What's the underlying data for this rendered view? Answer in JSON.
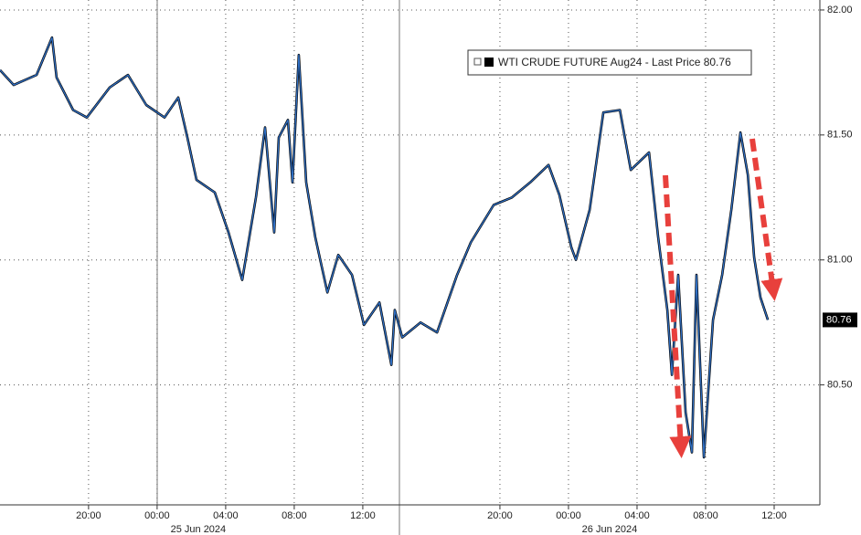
{
  "chart_data": {
    "type": "line",
    "x": [
      "2024-06-24 14:50",
      "2024-06-24 15:38",
      "2024-06-24 16:58",
      "2024-06-24 17:52",
      "2024-06-24 18:08",
      "2024-06-24 19:06",
      "2024-06-24 19:54",
      "2024-06-24 21:14",
      "2024-06-24 22:18",
      "2024-06-24 23:22",
      "2024-06-25 00:26",
      "2024-06-25 01:14",
      "2024-06-25 01:46",
      "2024-06-25 02:18",
      "2024-06-25 03:22",
      "2024-06-25 04:10",
      "2024-06-25 04:58",
      "2024-06-25 05:46",
      "2024-06-25 06:18",
      "2024-06-25 06:50",
      "2024-06-25 07:06",
      "2024-06-25 07:38",
      "2024-06-25 07:54",
      "2024-06-25 08:16",
      "2024-06-25 08:42",
      "2024-06-25 09:14",
      "2024-06-25 09:56",
      "2024-06-25 10:34",
      "2024-06-25 11:22",
      "2024-06-25 12:04",
      "2024-06-25 12:58",
      "2024-06-25 13:40",
      "2024-06-25 13:52",
      "2024-06-25 14:18",
      "2024-06-25 15:22",
      "2024-06-25 16:20",
      "2024-06-25 17:30",
      "2024-06-25 18:18",
      "2024-06-25 19:38",
      "2024-06-25 20:42",
      "2024-06-25 21:46",
      "2024-06-25 22:50",
      "2024-06-25 23:28",
      "2024-06-26 00:10",
      "2024-06-26 00:26",
      "2024-06-26 01:14",
      "2024-06-26 02:02",
      "2024-06-26 03:00",
      "2024-06-26 03:38",
      "2024-06-26 04:42",
      "2024-06-26 05:14",
      "2024-06-26 05:46",
      "2024-06-26 06:02",
      "2024-06-26 06:24",
      "2024-06-26 06:50",
      "2024-06-26 07:12",
      "2024-06-26 07:28",
      "2024-06-26 07:54",
      "2024-06-26 08:26",
      "2024-06-26 08:58",
      "2024-06-26 09:30",
      "2024-06-26 10:02",
      "2024-06-26 10:28",
      "2024-06-26 10:50",
      "2024-06-26 11:12",
      "2024-06-26 11:38"
    ],
    "series": [
      {
        "name": "WTI CRUDE FUTURE Aug24 - Last Price 80.76",
        "color": "#2f6fc4",
        "values": [
          81.76,
          81.7,
          81.74,
          81.89,
          81.73,
          81.6,
          81.57,
          81.69,
          81.74,
          81.62,
          81.57,
          81.65,
          81.49,
          81.32,
          81.27,
          81.11,
          80.92,
          81.25,
          81.53,
          81.11,
          81.49,
          81.56,
          81.31,
          81.82,
          81.31,
          81.09,
          80.87,
          81.02,
          80.94,
          80.74,
          80.83,
          80.58,
          80.8,
          80.69,
          80.75,
          80.71,
          80.94,
          81.07,
          81.22,
          81.25,
          81.31,
          81.38,
          81.26,
          81.05,
          81.0,
          81.2,
          81.59,
          81.6,
          81.36,
          81.43,
          81.09,
          80.8,
          80.54,
          80.94,
          80.39,
          80.23,
          80.94,
          80.21,
          80.76,
          80.94,
          81.2,
          81.51,
          81.34,
          81.01,
          80.85,
          80.76
        ]
      }
    ],
    "last_price": 80.76,
    "xlim": [
      "2024-06-24 14:50",
      "2024-06-26 14:40"
    ],
    "xticks": [
      {
        "value": "2024-06-24 20:00",
        "label": "20:00"
      },
      {
        "value": "2024-06-25 00:00",
        "label": "00:00"
      },
      {
        "value": "2024-06-25 04:00",
        "label": "04:00"
      },
      {
        "value": "2024-06-25 08:00",
        "label": "08:00"
      },
      {
        "value": "2024-06-25 12:00",
        "label": "12:00"
      },
      {
        "value": "2024-06-25 20:00",
        "label": "20:00"
      },
      {
        "value": "2024-06-26 00:00",
        "label": "00:00"
      },
      {
        "value": "2024-06-26 04:00",
        "label": "04:00"
      },
      {
        "value": "2024-06-26 08:00",
        "label": "08:00"
      },
      {
        "value": "2024-06-26 12:00",
        "label": "12:00"
      }
    ],
    "date_labels": [
      "25 Jun 2024",
      "26 Jun 2024"
    ],
    "ylim": [
      80.02,
      82.04
    ],
    "yticks": [
      {
        "value": 80.5,
        "label": "80.50"
      },
      {
        "value": 81,
        "label": "81.00"
      },
      {
        "value": 81.5,
        "label": "81.50"
      },
      {
        "value": 82,
        "label": "82.00"
      }
    ],
    "grid": true
  }
}
